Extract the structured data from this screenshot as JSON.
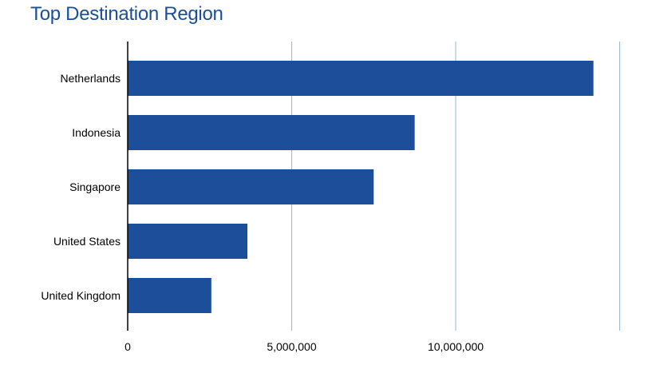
{
  "chart_data": {
    "type": "bar",
    "orientation": "horizontal",
    "title": "Top Destination Region",
    "xlabel": "",
    "ylabel": "",
    "categories": [
      "Netherlands",
      "Indonesia",
      "Singapore",
      "United States",
      "United Kingdom"
    ],
    "values": [
      14200000,
      8750000,
      7500000,
      3650000,
      2550000
    ],
    "x_ticks": [
      0,
      5000000,
      10000000
    ],
    "x_tick_labels": [
      "0",
      "5,000,000",
      "10,000,000"
    ],
    "xlim": [
      0,
      15000000
    ],
    "grid": "vertical",
    "legend": "none",
    "bar_color": "#1c4e9a",
    "grid_color": "#9ab4d6"
  }
}
